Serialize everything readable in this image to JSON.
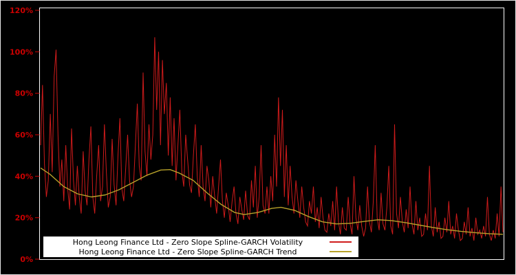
{
  "window": {
    "background": "#000000",
    "border_color": "#e8e8e8"
  },
  "axis": {
    "tick_color": "#cc0000",
    "label_color": "#cc0000",
    "frame_color": "#ffffff"
  },
  "chart_data": {
    "type": "line",
    "title": "",
    "xlabel": "",
    "ylabel": "",
    "ylim": [
      0,
      120
    ],
    "grid": false,
    "legend_position": "bottom-center",
    "x_tick_labels_visible": false,
    "y_ticks": [
      {
        "value": 0,
        "label": "0%"
      },
      {
        "value": 20,
        "label": "20%"
      },
      {
        "value": 40,
        "label": "40%"
      },
      {
        "value": 60,
        "label": "60%"
      },
      {
        "value": 80,
        "label": "80%"
      },
      {
        "value": 100,
        "label": "100%"
      },
      {
        "value": 120,
        "label": "120%"
      }
    ],
    "series": [
      {
        "name": "Hong Leong Finance Ltd - Zero Slope Spline-GARCH Volatility",
        "color": "#cf1b1b",
        "unit": "%",
        "values": [
          55,
          84,
          46,
          30,
          38,
          70,
          42,
          88,
          101,
          60,
          35,
          48,
          28,
          55,
          34,
          24,
          63,
          38,
          26,
          45,
          30,
          22,
          52,
          33,
          26,
          48,
          64,
          30,
          22,
          40,
          55,
          28,
          35,
          65,
          42,
          25,
          30,
          58,
          36,
          26,
          50,
          68,
          34,
          28,
          44,
          60,
          38,
          30,
          35,
          55,
          75,
          45,
          38,
          90,
          52,
          40,
          65,
          48,
          60,
          107,
          72,
          100,
          55,
          96,
          70,
          85,
          50,
          78,
          45,
          68,
          38,
          55,
          72,
          42,
          35,
          60,
          48,
          36,
          32,
          50,
          65,
          40,
          30,
          55,
          35,
          28,
          45,
          38,
          25,
          40,
          30,
          22,
          35,
          48,
          28,
          20,
          32,
          26,
          18,
          28,
          35,
          22,
          17,
          30,
          24,
          19,
          33,
          21,
          19,
          38,
          25,
          45,
          20,
          30,
          55,
          26,
          22,
          35,
          22,
          40,
          28,
          60,
          35,
          78,
          45,
          72,
          30,
          55,
          26,
          45,
          30,
          22,
          38,
          28,
          20,
          35,
          25,
          18,
          16,
          28,
          22,
          35,
          18,
          25,
          15,
          30,
          20,
          14,
          13,
          22,
          16,
          28,
          14,
          35,
          18,
          12,
          25,
          15,
          14,
          30,
          17,
          12,
          40,
          20,
          14,
          26,
          16,
          11,
          15,
          35,
          18,
          13,
          28,
          55,
          20,
          14,
          32,
          17,
          14,
          25,
          45,
          16,
          12,
          65,
          22,
          15,
          30,
          18,
          13,
          24,
          15,
          35,
          17,
          12,
          28,
          14,
          20,
          11,
          12,
          22,
          14,
          45,
          16,
          11,
          25,
          13,
          18,
          10,
          11,
          20,
          13,
          28,
          12,
          16,
          10,
          22,
          14,
          9,
          10,
          18,
          12,
          25,
          11,
          15,
          9,
          20,
          12,
          14,
          10,
          16,
          11,
          30,
          12,
          9,
          14,
          10,
          22,
          11,
          35,
          13
        ]
      },
      {
        "name": "Hong Leong Finance Ltd - Zero Slope Spline-GARCH Trend",
        "color": "#b8a22a",
        "unit": "%",
        "points": [
          [
            0,
            44
          ],
          [
            0.02,
            41
          ],
          [
            0.05,
            35
          ],
          [
            0.08,
            31.5
          ],
          [
            0.11,
            30
          ],
          [
            0.14,
            31
          ],
          [
            0.17,
            33.5
          ],
          [
            0.2,
            37
          ],
          [
            0.23,
            40.5
          ],
          [
            0.26,
            43
          ],
          [
            0.28,
            43.2
          ],
          [
            0.3,
            41.5
          ],
          [
            0.33,
            38
          ],
          [
            0.36,
            32
          ],
          [
            0.39,
            26.5
          ],
          [
            0.42,
            22.5
          ],
          [
            0.44,
            21.5
          ],
          [
            0.47,
            22.5
          ],
          [
            0.5,
            24.5
          ],
          [
            0.52,
            25
          ],
          [
            0.55,
            23.5
          ],
          [
            0.58,
            20.5
          ],
          [
            0.61,
            18
          ],
          [
            0.64,
            17
          ],
          [
            0.67,
            17.3
          ],
          [
            0.7,
            18.2
          ],
          [
            0.73,
            19
          ],
          [
            0.76,
            18.6
          ],
          [
            0.79,
            17.6
          ],
          [
            0.82,
            16.4
          ],
          [
            0.85,
            15.2
          ],
          [
            0.88,
            14.2
          ],
          [
            0.91,
            13.4
          ],
          [
            0.94,
            12.8
          ],
          [
            0.97,
            12.3
          ],
          [
            1,
            12
          ]
        ]
      }
    ]
  },
  "legend": {
    "items": [
      {
        "label": "Hong Leong Finance Ltd - Zero Slope Spline-GARCH Volatility",
        "color": "#cf1b1b"
      },
      {
        "label": "Hong Leong Finance Ltd - Zero Slope Spline-GARCH Trend",
        "color": "#b8a22a"
      }
    ]
  }
}
